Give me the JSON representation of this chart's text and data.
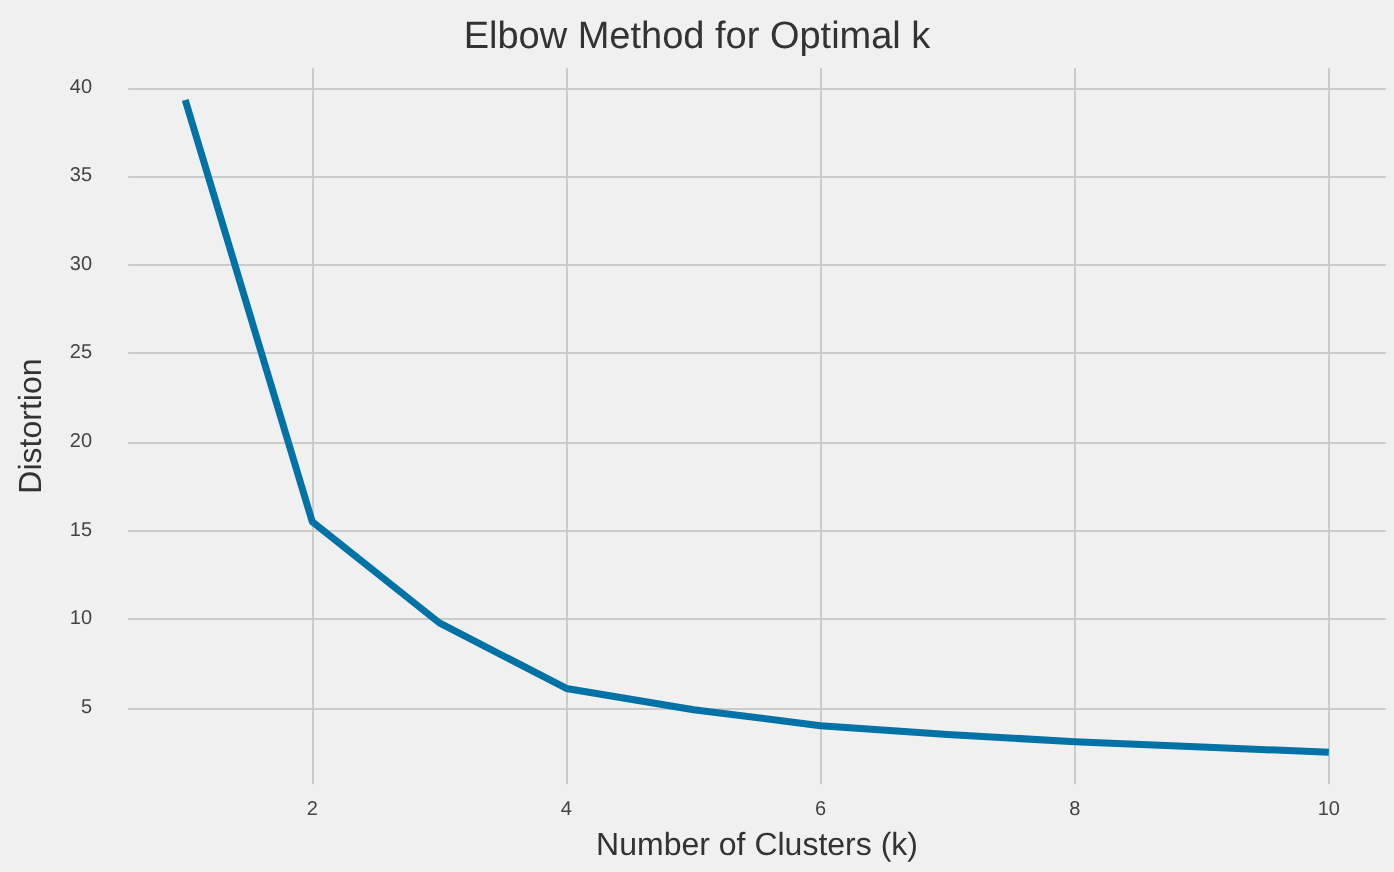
{
  "chart_data": {
    "type": "line",
    "title": "Elbow Method for Optimal k",
    "xlabel": "Number of Clusters (k)",
    "ylabel": "Distortion",
    "x": [
      1,
      2,
      3,
      4,
      5,
      6,
      7,
      8,
      9,
      10
    ],
    "series": [
      {
        "color": "#0072a6",
        "values": [
          39.3,
          15.5,
          9.8,
          6.1,
          4.9,
          4.0,
          3.5,
          3.1,
          2.8,
          2.5
        ]
      }
    ],
    "xlim": [
      0.55,
      10.45
    ],
    "xticks": [
      2,
      4,
      6,
      8,
      10
    ],
    "ylim": [
      0.7,
      41.1
    ],
    "yticks": [
      5,
      10,
      15,
      20,
      25,
      30,
      35,
      40
    ],
    "grid": true,
    "marker": "none",
    "line_style": "solid"
  }
}
